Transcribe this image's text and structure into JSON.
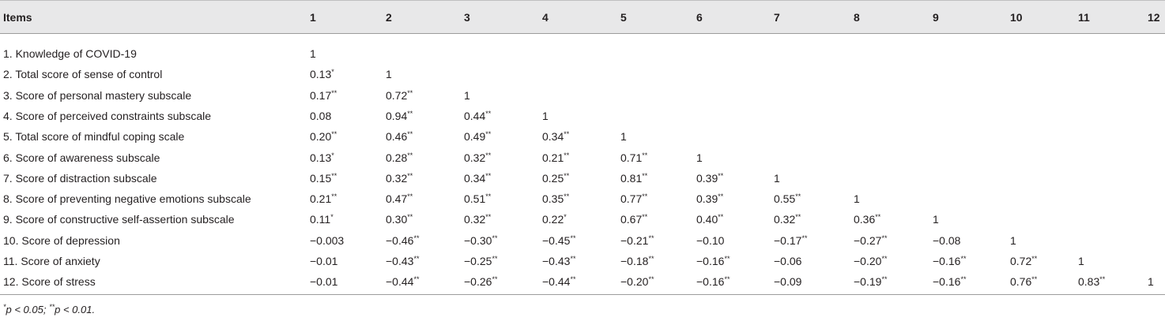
{
  "table": {
    "columns": [
      "Items",
      "1",
      "2",
      "3",
      "4",
      "5",
      "6",
      "7",
      "8",
      "9",
      "10",
      "11",
      "12"
    ],
    "rows": [
      {
        "label": "1. Knowledge of COVID-19",
        "cells": [
          [
            "1",
            ""
          ]
        ]
      },
      {
        "label": "2. Total score of sense of control",
        "cells": [
          [
            "0.13",
            "*"
          ],
          [
            "1",
            ""
          ]
        ]
      },
      {
        "label": "3. Score of personal mastery subscale",
        "cells": [
          [
            "0.17",
            "**"
          ],
          [
            "0.72",
            "**"
          ],
          [
            "1",
            ""
          ]
        ]
      },
      {
        "label": "4. Score of perceived constraints subscale",
        "cells": [
          [
            "0.08",
            ""
          ],
          [
            "0.94",
            "**"
          ],
          [
            "0.44",
            "**"
          ],
          [
            "1",
            ""
          ]
        ]
      },
      {
        "label": "5. Total score of mindful coping scale",
        "cells": [
          [
            "0.20",
            "**"
          ],
          [
            "0.46",
            "**"
          ],
          [
            "0.49",
            "**"
          ],
          [
            "0.34",
            "**"
          ],
          [
            "1",
            ""
          ]
        ]
      },
      {
        "label": "6. Score of awareness subscale",
        "cells": [
          [
            "0.13",
            "*"
          ],
          [
            "0.28",
            "**"
          ],
          [
            "0.32",
            "**"
          ],
          [
            "0.21",
            "**"
          ],
          [
            "0.71",
            "**"
          ],
          [
            "1",
            ""
          ]
        ]
      },
      {
        "label": "7. Score of distraction subscale",
        "cells": [
          [
            "0.15",
            "**"
          ],
          [
            "0.32",
            "**"
          ],
          [
            "0.34",
            "**"
          ],
          [
            "0.25",
            "**"
          ],
          [
            "0.81",
            "**"
          ],
          [
            "0.39",
            "**"
          ],
          [
            "1",
            ""
          ]
        ]
      },
      {
        "label": "8. Score of preventing negative emotions subscale",
        "cells": [
          [
            "0.21",
            "**"
          ],
          [
            "0.47",
            "**"
          ],
          [
            "0.51",
            "**"
          ],
          [
            "0.35",
            "**"
          ],
          [
            "0.77",
            "**"
          ],
          [
            "0.39",
            "**"
          ],
          [
            "0.55",
            "**"
          ],
          [
            "1",
            ""
          ]
        ]
      },
      {
        "label": "9. Score of constructive self-assertion subscale",
        "cells": [
          [
            "0.11",
            "*"
          ],
          [
            "0.30",
            "**"
          ],
          [
            "0.32",
            "**"
          ],
          [
            "0.22",
            "*"
          ],
          [
            "0.67",
            "**"
          ],
          [
            "0.40",
            "**"
          ],
          [
            "0.32",
            "**"
          ],
          [
            "0.36",
            "**"
          ],
          [
            "1",
            ""
          ]
        ]
      },
      {
        "label": "10. Score of depression",
        "cells": [
          [
            "−0.003",
            ""
          ],
          [
            "−0.46",
            "**"
          ],
          [
            "−0.30",
            "**"
          ],
          [
            "−0.45",
            "**"
          ],
          [
            "−0.21",
            "**"
          ],
          [
            "−0.10",
            ""
          ],
          [
            "−0.17",
            "**"
          ],
          [
            "−0.27",
            "**"
          ],
          [
            "−0.08",
            ""
          ],
          [
            "1",
            ""
          ]
        ]
      },
      {
        "label": "11. Score of anxiety",
        "cells": [
          [
            "−0.01",
            ""
          ],
          [
            "−0.43",
            "**"
          ],
          [
            "−0.25",
            "**"
          ],
          [
            "−0.43",
            "**"
          ],
          [
            "−0.18",
            "**"
          ],
          [
            "−0.16",
            "**"
          ],
          [
            "−0.06",
            ""
          ],
          [
            "−0.20",
            "**"
          ],
          [
            "−0.16",
            "**"
          ],
          [
            "0.72",
            "**"
          ],
          [
            "1",
            ""
          ]
        ]
      },
      {
        "label": "12. Score of stress",
        "cells": [
          [
            "−0.01",
            ""
          ],
          [
            "−0.44",
            "**"
          ],
          [
            "−0.26",
            "**"
          ],
          [
            "−0.44",
            "**"
          ],
          [
            "−0.20",
            "**"
          ],
          [
            "−0.16",
            "**"
          ],
          [
            "−0.09",
            ""
          ],
          [
            "−0.19",
            "**"
          ],
          [
            "−0.16",
            "**"
          ],
          [
            "0.76",
            "**"
          ],
          [
            "0.83",
            "**"
          ],
          [
            "1",
            ""
          ]
        ]
      }
    ]
  },
  "footnote": {
    "star1": "*",
    "text1": "p < 0.05; ",
    "star2": "**",
    "text2": "p < 0.01."
  }
}
